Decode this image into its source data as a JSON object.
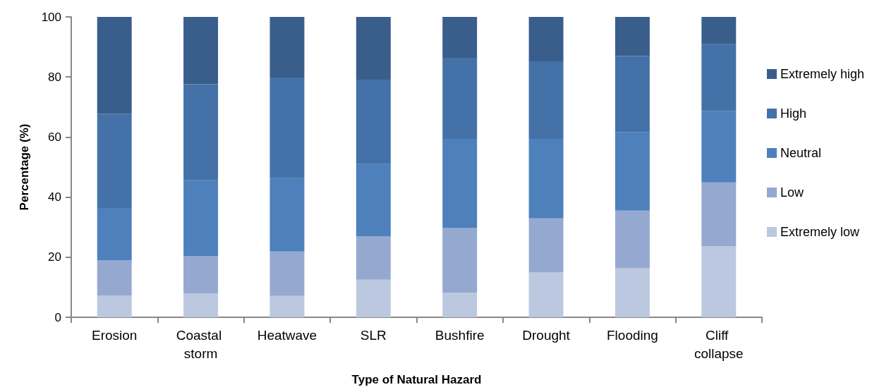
{
  "chart_data": {
    "type": "bar",
    "stacked": true,
    "xlabel": "Type of Natural Hazard",
    "ylabel": "Percentage (%)",
    "categories": [
      "Erosion",
      "Coastal storm",
      "Heatwave",
      "SLR",
      "Bushfire",
      "Drought",
      "Flooding",
      "Cliff collapse"
    ],
    "series": [
      {
        "name": "Extremely low",
        "color": "#bcc8e0",
        "values": [
          7.3,
          8.0,
          7.1,
          12.5,
          8.2,
          14.9,
          16.3,
          23.6
        ]
      },
      {
        "name": "Low",
        "color": "#95a9d0",
        "values": [
          11.7,
          12.4,
          14.8,
          14.4,
          21.5,
          18.0,
          19.2,
          21.3
        ]
      },
      {
        "name": "Neutral",
        "color": "#4e80bc",
        "values": [
          17.4,
          25.2,
          24.4,
          24.1,
          29.7,
          26.5,
          26.2,
          23.8
        ]
      },
      {
        "name": "High",
        "color": "#4472a8",
        "values": [
          31.4,
          32.0,
          33.5,
          28.1,
          27.0,
          25.8,
          25.3,
          22.2
        ]
      },
      {
        "name": "Extremely high",
        "color": "#3a5e8c",
        "values": [
          32.2,
          22.4,
          20.2,
          20.9,
          13.6,
          14.8,
          13.0,
          9.1
        ]
      }
    ],
    "ylim": [
      0,
      100
    ],
    "yticks": [
      0,
      20,
      40,
      60,
      80,
      100
    ],
    "grid": false,
    "legend": "right"
  }
}
